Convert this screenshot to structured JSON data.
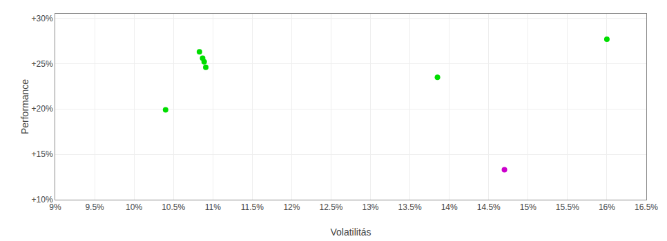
{
  "chart_data": {
    "type": "scatter",
    "xlabel": "Volatilitás",
    "ylabel": "Performance",
    "xlim": [
      0.09,
      0.165
    ],
    "ylim": [
      0.1,
      0.305
    ],
    "xticks": [
      {
        "value": 0.09,
        "label": "9%"
      },
      {
        "value": 0.095,
        "label": "9.5%"
      },
      {
        "value": 0.1,
        "label": "10%"
      },
      {
        "value": 0.105,
        "label": "10.5%"
      },
      {
        "value": 0.11,
        "label": "11%"
      },
      {
        "value": 0.115,
        "label": "11.5%"
      },
      {
        "value": 0.12,
        "label": "12%"
      },
      {
        "value": 0.125,
        "label": "12.5%"
      },
      {
        "value": 0.13,
        "label": "13%"
      },
      {
        "value": 0.135,
        "label": "13.5%"
      },
      {
        "value": 0.14,
        "label": "14%"
      },
      {
        "value": 0.145,
        "label": "14.5%"
      },
      {
        "value": 0.15,
        "label": "15%"
      },
      {
        "value": 0.155,
        "label": "15.5%"
      },
      {
        "value": 0.16,
        "label": "16%"
      },
      {
        "value": 0.165,
        "label": "16.5%"
      }
    ],
    "yticks": [
      {
        "value": 0.1,
        "label": "+10%"
      },
      {
        "value": 0.15,
        "label": "+15%"
      },
      {
        "value": 0.2,
        "label": "+20%"
      },
      {
        "value": 0.25,
        "label": "+25%"
      },
      {
        "value": 0.3,
        "label": "+30%"
      }
    ],
    "grid": true,
    "marker": "circle",
    "series": [
      {
        "color": "#00dd00",
        "x": [
          0.1083,
          0.1087,
          0.1089,
          0.1091,
          0.104,
          0.1385,
          0.16
        ],
        "values": [
          0.263,
          0.256,
          0.252,
          0.246,
          0.199,
          0.235,
          0.277
        ]
      },
      {
        "color": "#cc00cc",
        "x": [
          0.147
        ],
        "values": [
          0.133
        ]
      }
    ]
  }
}
